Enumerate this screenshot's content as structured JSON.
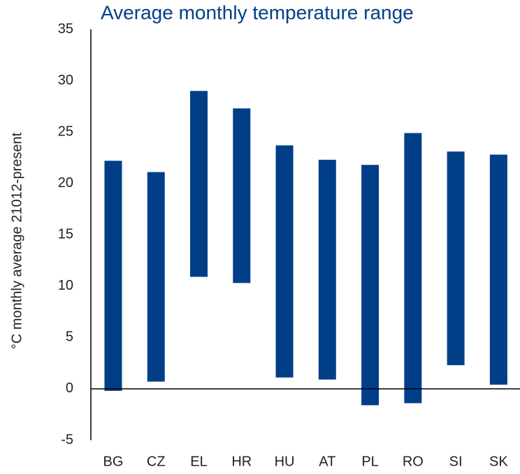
{
  "chart_data": {
    "type": "range",
    "title": "Average monthly temperature range",
    "y_label": "°C monthly average 21012-present",
    "categories": [
      "BG",
      "CZ",
      "EL",
      "HR",
      "HU",
      "AT",
      "PL",
      "RO",
      "SI",
      "SK"
    ],
    "low": [
      -0.2,
      0.7,
      10.9,
      10.3,
      1.1,
      0.9,
      -1.6,
      -1.4,
      2.3,
      0.4
    ],
    "high": [
      22.2,
      21.1,
      29.0,
      27.3,
      23.7,
      22.3,
      21.8,
      24.9,
      23.1,
      22.8
    ],
    "color": "#003f87",
    "ylim": [
      -5,
      35
    ],
    "yticks": [
      -5,
      0,
      5,
      10,
      15,
      20,
      25,
      30,
      35
    ],
    "grid": false
  }
}
